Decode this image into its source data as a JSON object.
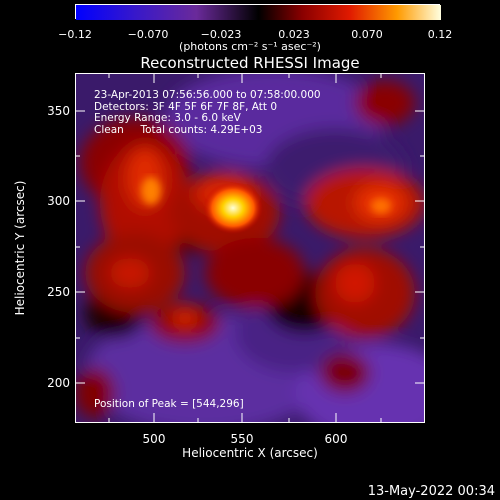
{
  "colorbar": {
    "ticks": [
      "−0.12",
      "−0.070",
      "−0.023",
      "0.023",
      "0.070",
      "0.12"
    ],
    "units": "(photons cm⁻² s⁻¹ asec⁻²)"
  },
  "title": "Reconstructed RHESSI Image",
  "info": {
    "line1": "23-Apr-2013 07:56:56.000 to 07:58:00.000",
    "line2": "Detectors: 3F 4F 5F 6F 7F 8F, Att 0",
    "line3": "Energy Range: 3.0 - 6.0 keV",
    "line4": "Clean     Total counts: 4.29E+03"
  },
  "peak_label": "Position of Peak = [544,296]",
  "axes": {
    "xlabel": "Heliocentric X (arcsec)",
    "ylabel": "Heliocentric Y (arcsec)",
    "xticks": [
      "500",
      "550",
      "600"
    ],
    "yticks": [
      "350",
      "300",
      "250",
      "200"
    ]
  },
  "timestamp": "13-May-2022 00:34"
}
